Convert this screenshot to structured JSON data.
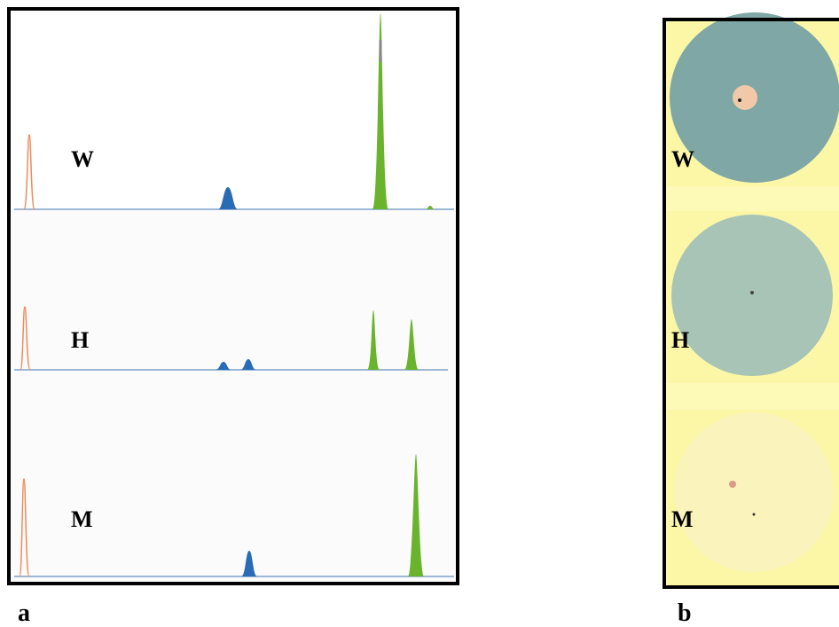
{
  "panel_a": {
    "label": "a",
    "tracks": [
      "W",
      "H",
      "M"
    ]
  },
  "panel_b": {
    "label": "b",
    "spots": [
      "W",
      "H",
      "M"
    ]
  }
}
